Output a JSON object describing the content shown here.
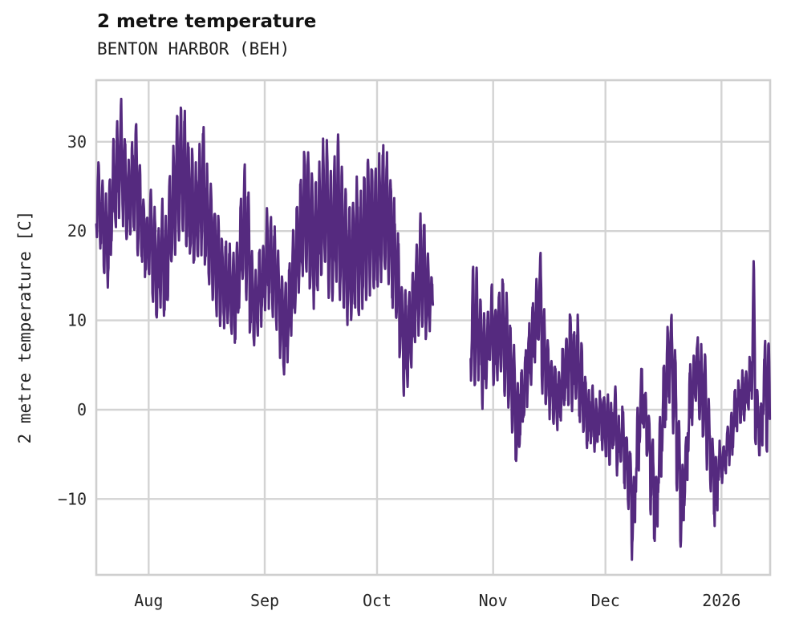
{
  "chart": {
    "title": "2 metre temperature",
    "subtitle": "BENTON HARBOR (BEH)",
    "ylabel": "2 metre temperature [C]"
  },
  "chart_data": {
    "type": "line",
    "title": "2 metre temperature",
    "subtitle": "BENTON HARBOR (BEH)",
    "ylabel": "2 metre temperature [C]",
    "legend": "none",
    "grid": true,
    "line_color": "#552a7f",
    "grid_color": "#d3d3d3",
    "spine_color": "#cfcfcf",
    "ylim": [
      -18.5,
      36.9
    ],
    "y_ticks": [
      30,
      20,
      10,
      0,
      -10
    ],
    "y_tick_labels": [
      "30",
      "20",
      "10",
      "0",
      "−10"
    ],
    "x_tick_labels": [
      "Aug",
      "Sep",
      "Oct",
      "Nov",
      "Dec",
      "2026"
    ],
    "x_tick_day_offsets": [
      14,
      45,
      75,
      106,
      136,
      167
    ],
    "x_domain_days": [
      0,
      180
    ],
    "gap_day_indices": [
      90,
      99
    ],
    "daily_min": [
      20,
      18,
      15,
      14,
      19,
      21,
      22,
      21,
      19,
      20,
      20,
      18,
      16.9,
      15,
      14.6,
      12,
      10.5,
      12,
      10,
      13,
      16,
      18,
      19,
      20,
      18,
      17,
      16,
      17,
      18,
      16,
      14,
      13,
      11,
      10,
      9.5,
      9,
      8.5,
      8.2,
      11,
      14,
      13,
      8.5,
      6.8,
      9,
      10,
      11,
      12,
      11,
      9,
      6.5,
      4.6,
      6,
      9,
      11,
      13,
      15,
      15.5,
      13,
      12,
      13.5,
      15,
      15.5,
      13,
      12.5,
      14,
      13,
      11.5,
      10.2,
      10,
      11.5,
      10.6,
      12,
      13,
      13.5,
      13,
      14,
      15,
      15.5,
      13.5,
      12,
      9.6,
      5.8,
      2.2,
      2.6,
      5,
      7.4,
      9,
      10,
      8,
      9.5,
      null,
      null,
      null,
      null,
      null,
      null,
      null,
      null,
      null,
      null,
      3.5,
      2.6,
      4,
      0.8,
      3,
      5,
      3,
      4,
      5,
      2,
      0.5,
      -2,
      -6,
      -4,
      -1,
      1,
      3,
      6,
      8,
      2.5,
      0.5,
      -0.5,
      -1.5,
      -1.7,
      -0.5,
      0.5,
      1,
      0,
      1.5,
      -0.8,
      -2,
      -4,
      -3.5,
      -4,
      -2.5,
      -4,
      -4.5,
      -5.5,
      -4,
      -7,
      -5.5,
      -8.5,
      -11,
      -16.1,
      -9,
      -4,
      -2,
      -6,
      -11,
      -14.9,
      -9,
      -4,
      -0.5,
      1.5,
      -2,
      -9,
      -15.6,
      -10,
      -4,
      -1,
      0.5,
      -1,
      -3,
      -6,
      -8.5,
      -12.5,
      -8,
      -7.5,
      -6.5,
      -5.5,
      -3.5,
      -1.7,
      -1,
      -0.5,
      0,
      1,
      -3.2,
      -4.4,
      -0.5,
      -4.4
    ],
    "daily_max": [
      27,
      25,
      23.5,
      26,
      30,
      32,
      34.4,
      31,
      27.5,
      29.5,
      32,
      28,
      24,
      22.5,
      25,
      22,
      20,
      23.5,
      21,
      26,
      29.5,
      32.5,
      34,
      33,
      30.5,
      28.5,
      27,
      29.5,
      31.3,
      27,
      25,
      23,
      21,
      19,
      18.5,
      18,
      17.5,
      18,
      24,
      27.3,
      24,
      18,
      15,
      17.5,
      18.5,
      22.5,
      21.5,
      20,
      17.5,
      15,
      13.5,
      16,
      19.5,
      23,
      26,
      29.3,
      28.5,
      26,
      25,
      27.5,
      30.5,
      29.5,
      26.5,
      28,
      30.5,
      26.5,
      24,
      22.5,
      23,
      25.5,
      24,
      26.5,
      28.4,
      28,
      26.5,
      28,
      29.3,
      28.5,
      26,
      23.5,
      19.5,
      14,
      13,
      13.7,
      16,
      18.9,
      21.3,
      20.5,
      17,
      14.8,
      null,
      null,
      null,
      null,
      null,
      null,
      null,
      null,
      null,
      null,
      15.8,
      15.2,
      12.5,
      10.2,
      11,
      13.5,
      12.2,
      13,
      14.6,
      12.4,
      9.5,
      7,
      2.5,
      4.5,
      6.5,
      9,
      12,
      15,
      17.3,
      11,
      7.5,
      5.8,
      4.5,
      3.5,
      6.5,
      8.2,
      10.9,
      8.7,
      10,
      7,
      4,
      1.9,
      2,
      0.5,
      1.5,
      1,
      1.5,
      0.5,
      2.1,
      -1,
      0,
      -2,
      -5,
      -7.5,
      -0.5,
      4.6,
      2,
      -0.5,
      -3.5,
      -7.5,
      -1.5,
      5,
      9,
      10.9,
      6,
      -0.5,
      -6.5,
      -3,
      4.5,
      6.5,
      8.2,
      7,
      5.9,
      0.5,
      -3.5,
      -6,
      -4,
      -3.5,
      -2,
      -0.6,
      1.5,
      2.8,
      3.8,
      4.5,
      5.2,
      16.3,
      2,
      0.5,
      7,
      8.4
    ]
  }
}
